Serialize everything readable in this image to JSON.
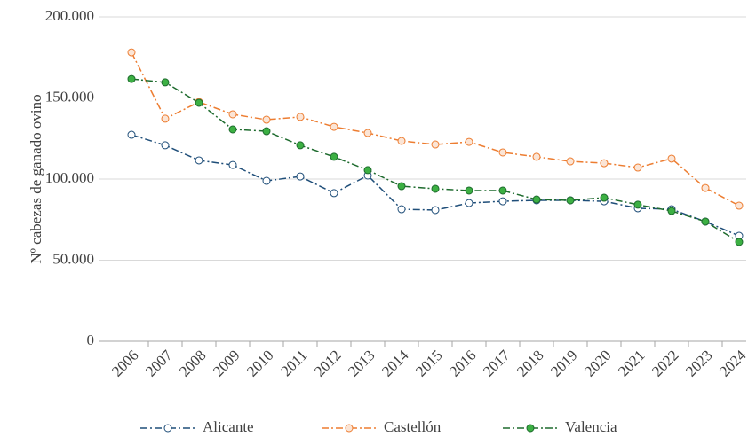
{
  "chart_data": {
    "type": "line",
    "y_label": "Nº cabezas de ganado ovino",
    "categories": [
      "2006",
      "2007",
      "2008",
      "2009",
      "2010",
      "2011",
      "2012",
      "2013",
      "2014",
      "2015",
      "2016",
      "2017",
      "2018",
      "2019",
      "2020",
      "2021",
      "2022",
      "2023",
      "2024"
    ],
    "series": [
      {
        "name": "Alicante",
        "color": "#1f4e79",
        "marker_color": "#ffffff",
        "values": [
          127300,
          120800,
          111500,
          108700,
          98900,
          101600,
          91300,
          102200,
          81400,
          80900,
          85200,
          86300,
          86900,
          86900,
          86300,
          82000,
          81400,
          73800,
          65000
        ]
      },
      {
        "name": "Castellón",
        "color": "#ed7d31",
        "marker_color": "#fbe5d6",
        "values": [
          178100,
          137200,
          147500,
          139900,
          136600,
          138300,
          132200,
          128400,
          123500,
          121300,
          122900,
          116400,
          113700,
          110900,
          109800,
          107100,
          112600,
          94500,
          83600
        ]
      },
      {
        "name": "Valencia",
        "color": "#1e6b2e",
        "marker_color": "#3cb043",
        "values": [
          161700,
          159600,
          147000,
          130600,
          129500,
          120800,
          113700,
          105500,
          95600,
          94000,
          92900,
          92900,
          87400,
          86900,
          88500,
          84200,
          80300,
          73800,
          61200
        ]
      }
    ],
    "ylim": [
      0,
      200000
    ],
    "yticks": [
      {
        "value": 0,
        "label": "0"
      },
      {
        "value": 50000,
        "label": "50.000"
      },
      {
        "value": 100000,
        "label": "100.000"
      },
      {
        "value": 150000,
        "label": "150.000"
      },
      {
        "value": 200000,
        "label": "200.000"
      }
    ],
    "grid": true,
    "legend": "bottom"
  }
}
